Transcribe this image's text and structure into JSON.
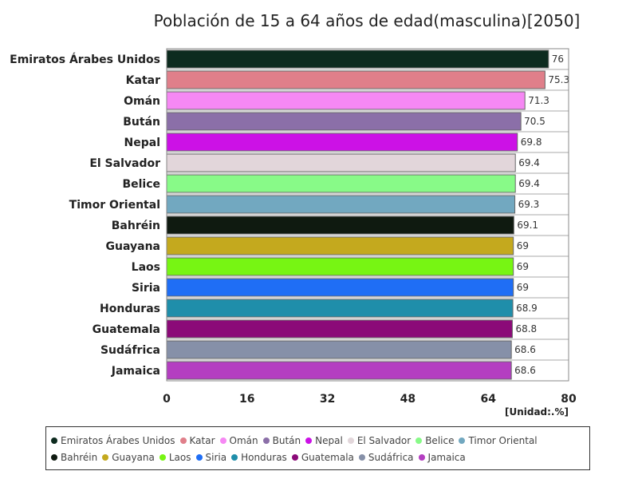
{
  "chart_data": {
    "type": "bar",
    "orientation": "horizontal",
    "title": "Población de 15 a 64 años de edad(masculina)[2050]",
    "unit_label": "[Unidad:.%]",
    "xlim": [
      0,
      80
    ],
    "ticks": [
      0,
      16,
      32,
      48,
      64,
      80
    ],
    "grid": false,
    "legend_position": "bottom",
    "categories": [
      "Emiratos Árabes Unidos",
      "Katar",
      "Omán",
      "Bután",
      "Nepal",
      "El Salvador",
      "Belice",
      "Timor Oriental",
      "Bahréin",
      "Guayana",
      "Laos",
      "Siria",
      "Honduras",
      "Guatemala",
      "Sudáfrica",
      "Jamaica"
    ],
    "values": [
      76,
      75.3,
      71.3,
      70.5,
      69.8,
      69.4,
      69.4,
      69.3,
      69.1,
      69,
      69,
      69,
      68.9,
      68.8,
      68.6,
      68.6
    ],
    "colors": [
      "#0d2b1f",
      "#e07f8a",
      "#f688f4",
      "#8b6fa8",
      "#cc11e6",
      "#e2d6da",
      "#88fa88",
      "#72a8c0",
      "#0f1a10",
      "#c4a91e",
      "#77f513",
      "#1f6ef5",
      "#1f8eaa",
      "#8b0a78",
      "#8690a8",
      "#b43ec1"
    ]
  }
}
